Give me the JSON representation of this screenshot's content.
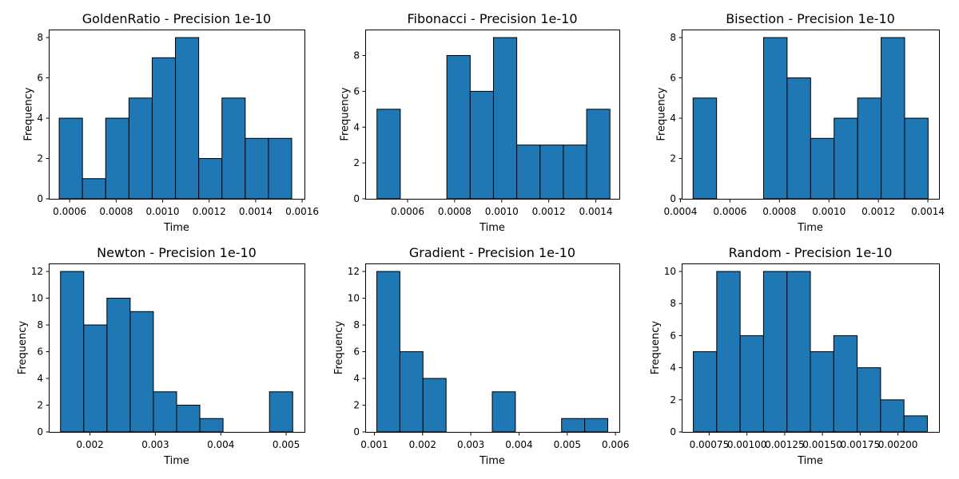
{
  "chart_data": [
    {
      "type": "bar",
      "title": "GoldenRatio - Precision 1e-10",
      "xlabel": "Time",
      "ylabel": "Frequency",
      "bin_edges": [
        0.000555,
        0.000655,
        0.000755,
        0.000855,
        0.000955,
        0.001055,
        0.001155,
        0.001255,
        0.001355,
        0.001455,
        0.001555
      ],
      "values": [
        4,
        1,
        4,
        5,
        7,
        8,
        2,
        5,
        3,
        3
      ],
      "xlim": [
        0.00051,
        0.00161
      ],
      "ylim": [
        0,
        8.4
      ],
      "xticks": [
        0.0006,
        0.0008,
        0.001,
        0.0012,
        0.0014,
        0.0016
      ],
      "xtick_labels": [
        "0.0006",
        "0.0008",
        "0.0010",
        "0.0012",
        "0.0014",
        "0.0016"
      ],
      "yticks": [
        0,
        2,
        4,
        6,
        8
      ],
      "ytick_labels": [
        "0",
        "2",
        "4",
        "6",
        "8"
      ]
    },
    {
      "type": "bar",
      "title": "Fibonacci - Precision 1e-10",
      "xlabel": "Time",
      "ylabel": "Frequency",
      "bin_edges": [
        0.00047,
        0.000569,
        0.000668,
        0.000767,
        0.000866,
        0.000965,
        0.001064,
        0.001163,
        0.001262,
        0.001361,
        0.00146
      ],
      "values": [
        5,
        0,
        0,
        8,
        6,
        9,
        3,
        3,
        3,
        5
      ],
      "xlim": [
        0.00042,
        0.0015
      ],
      "ylim": [
        0,
        9.45
      ],
      "xticks": [
        0.0006,
        0.0008,
        0.001,
        0.0012,
        0.0014
      ],
      "xtick_labels": [
        "0.0006",
        "0.0008",
        "0.0010",
        "0.0012",
        "0.0014"
      ],
      "yticks": [
        0,
        2,
        4,
        6,
        8
      ],
      "ytick_labels": [
        "0",
        "2",
        "4",
        "6",
        "8"
      ]
    },
    {
      "type": "bar",
      "title": "Bisection - Precision 1e-10",
      "xlabel": "Time",
      "ylabel": "Frequency",
      "bin_edges": [
        0.000451,
        0.000546,
        0.000641,
        0.000736,
        0.000831,
        0.000926,
        0.001021,
        0.001116,
        0.001211,
        0.001306,
        0.001401
      ],
      "values": [
        5,
        0,
        0,
        8,
        6,
        3,
        4,
        5,
        8,
        4
      ],
      "xlim": [
        0.000405,
        0.001445
      ],
      "ylim": [
        0,
        8.4
      ],
      "xticks": [
        0.0004,
        0.0006,
        0.0008,
        0.001,
        0.0012,
        0.0014
      ],
      "xtick_labels": [
        "0.0004",
        "0.0006",
        "0.0008",
        "0.0010",
        "0.0012",
        "0.0014"
      ],
      "yticks": [
        0,
        2,
        4,
        6,
        8
      ],
      "ytick_labels": [
        "0",
        "2",
        "4",
        "6",
        "8"
      ]
    },
    {
      "type": "bar",
      "title": "Newton - Precision 1e-10",
      "xlabel": "Time",
      "ylabel": "Frequency",
      "bin_edges": [
        0.00155,
        0.001905,
        0.00226,
        0.002615,
        0.00297,
        0.003325,
        0.00368,
        0.004035,
        0.00439,
        0.004745,
        0.0051
      ],
      "values": [
        12,
        8,
        10,
        9,
        3,
        2,
        1,
        0,
        0,
        3
      ],
      "xlim": [
        0.00137,
        0.00528
      ],
      "ylim": [
        0,
        12.6
      ],
      "xticks": [
        0.002,
        0.003,
        0.004,
        0.005
      ],
      "xtick_labels": [
        "0.002",
        "0.003",
        "0.004",
        "0.005"
      ],
      "yticks": [
        0,
        2,
        4,
        6,
        8,
        10,
        12
      ],
      "ytick_labels": [
        "0",
        "2",
        "4",
        "6",
        "8",
        "10",
        "12"
      ]
    },
    {
      "type": "bar",
      "title": "Gradient - Precision 1e-10",
      "xlabel": "Time",
      "ylabel": "Frequency",
      "bin_edges": [
        0.00105,
        0.001529,
        0.002008,
        0.002487,
        0.002966,
        0.003445,
        0.003924,
        0.004403,
        0.004882,
        0.005361,
        0.00584
      ],
      "values": [
        12,
        6,
        4,
        0,
        0,
        3,
        0,
        0,
        1,
        1
      ],
      "xlim": [
        0.00081,
        0.00608
      ],
      "ylim": [
        0,
        12.6
      ],
      "xticks": [
        0.001,
        0.002,
        0.003,
        0.004,
        0.005,
        0.006
      ],
      "xtick_labels": [
        "0.001",
        "0.002",
        "0.003",
        "0.004",
        "0.005",
        "0.006"
      ],
      "yticks": [
        0,
        2,
        4,
        6,
        8,
        10,
        12
      ],
      "ytick_labels": [
        "0",
        "2",
        "4",
        "6",
        "8",
        "10",
        "12"
      ]
    },
    {
      "type": "bar",
      "title": "Random - Precision 1e-10",
      "xlabel": "Time",
      "ylabel": "Frequency",
      "bin_edges": [
        0.000645,
        0.0008,
        0.000955,
        0.00111,
        0.001265,
        0.00142,
        0.001575,
        0.00173,
        0.001885,
        0.00204,
        0.002195
      ],
      "values": [
        5,
        10,
        6,
        10,
        10,
        5,
        6,
        4,
        2,
        1
      ],
      "xlim": [
        0.000568,
        0.002272
      ],
      "ylim": [
        0,
        10.5
      ],
      "xticks": [
        0.00075,
        0.001,
        0.00125,
        0.0015,
        0.00175,
        0.002
      ],
      "xtick_labels": [
        "0.00075",
        "0.00100",
        "0.00125",
        "0.00150",
        "0.00175",
        "0.00200"
      ],
      "yticks": [
        0,
        2,
        4,
        6,
        8,
        10
      ],
      "ytick_labels": [
        "0",
        "2",
        "4",
        "6",
        "8",
        "10"
      ]
    }
  ]
}
